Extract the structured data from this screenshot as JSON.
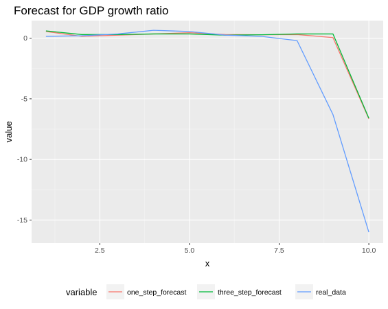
{
  "chart_data": {
    "type": "line",
    "title": "Forecast for GDP growth ratio",
    "xlabel": "x",
    "ylabel": "value",
    "xlim": [
      0.6,
      10.4
    ],
    "ylim": [
      -16.9,
      1.45
    ],
    "x_ticks": [
      2.5,
      5.0,
      7.5,
      10.0
    ],
    "x_tick_labels": [
      "2.5",
      "5.0",
      "7.5",
      "10.0"
    ],
    "y_ticks": [
      0,
      -5,
      -10,
      -15
    ],
    "y_tick_labels": [
      "0",
      "-5",
      "-10",
      "-15"
    ],
    "grid": true,
    "legend_title": "variable",
    "legend_position": "bottom",
    "x": [
      1,
      2,
      3,
      4,
      5,
      6,
      7,
      8,
      9,
      10
    ],
    "series": [
      {
        "name": "one_step_forecast",
        "color": "#F8766D",
        "values": [
          0.55,
          0.15,
          0.25,
          0.35,
          0.45,
          0.3,
          0.28,
          0.3,
          0.05,
          -6.65
        ]
      },
      {
        "name": "three_step_forecast",
        "color": "#00BA38",
        "values": [
          0.6,
          0.3,
          0.3,
          0.35,
          0.35,
          0.25,
          0.28,
          0.35,
          0.35,
          -6.6
        ]
      },
      {
        "name": "real_data",
        "color": "#619CFF",
        "values": [
          0.15,
          0.2,
          0.35,
          0.65,
          0.55,
          0.25,
          0.15,
          -0.2,
          -6.3,
          -16.0
        ]
      }
    ]
  }
}
